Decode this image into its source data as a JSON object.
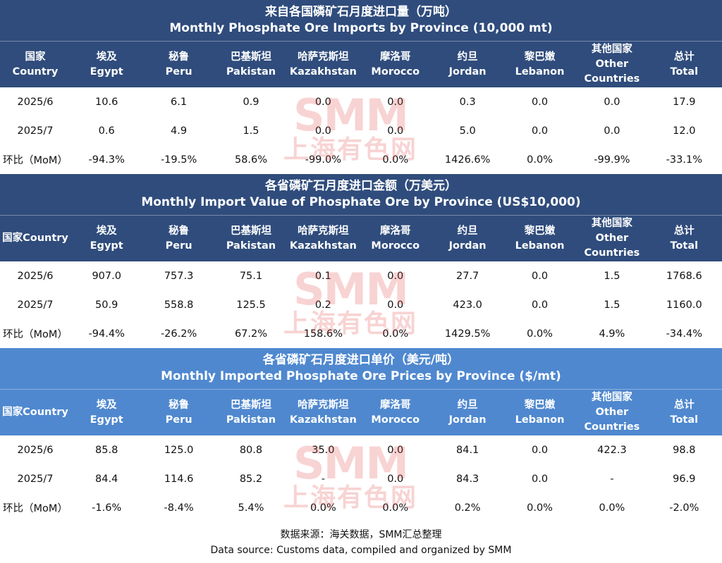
{
  "watermark": {
    "logo": "SMM",
    "name": "上海有色网"
  },
  "sections": [
    {
      "title_cn": "来自各国磷矿石月度进口量（万吨）",
      "title_en": "Monthly Phosphate Ore Imports by Province (10,000 mt)",
      "header": [
        [
          "国家",
          "Country"
        ],
        [
          "埃及",
          "Egypt"
        ],
        [
          "秘鲁",
          "Peru"
        ],
        [
          "巴基斯坦",
          "Pakistan"
        ],
        [
          "哈萨克斯坦",
          "Kazakhstan"
        ],
        [
          "摩洛哥",
          "Morocco"
        ],
        [
          "约旦",
          "Jordan"
        ],
        [
          "黎巴嫩",
          "Lebanon"
        ],
        [
          "其他国家",
          "Other Countries"
        ],
        [
          "总计",
          "Total"
        ]
      ],
      "rows": [
        [
          "2025/6",
          "10.6",
          "6.1",
          "0.9",
          "0.0",
          "0.0",
          "0.3",
          "0.0",
          "0.0",
          "17.9"
        ],
        [
          "2025/7",
          "0.6",
          "4.9",
          "1.5",
          "0.0",
          "0.0",
          "5.0",
          "0.0",
          "0.0",
          "12.0"
        ],
        [
          "环比（MoM）",
          "-94.3%",
          "-19.5%",
          "58.6%",
          "-99.0%",
          "0.0%",
          "1426.6%",
          "0.0%",
          "-99.9%",
          "-33.1%"
        ]
      ]
    },
    {
      "title_cn": "各省磷矿石月度进口金额（万美元）",
      "title_en": "Monthly Import Value of Phosphate Ore by Province (US$10,000)",
      "header": [
        [
          "国家Country"
        ],
        [
          "埃及",
          "Egypt"
        ],
        [
          "秘鲁",
          "Peru"
        ],
        [
          "巴基斯坦",
          "Pakistan"
        ],
        [
          "哈萨克斯坦",
          "Kazakhstan"
        ],
        [
          "摩洛哥",
          "Morocco"
        ],
        [
          "约旦",
          "Jordan"
        ],
        [
          "黎巴嫩",
          "Lebanon"
        ],
        [
          "其他国家",
          "Other Countries"
        ],
        [
          "总计",
          "Total"
        ]
      ],
      "rows": [
        [
          "2025/6",
          "907.0",
          "757.3",
          "75.1",
          "0.1",
          "0.0",
          "27.7",
          "0.0",
          "1.5",
          "1768.6"
        ],
        [
          "2025/7",
          "50.9",
          "558.8",
          "125.5",
          "0.2",
          "0.0",
          "423.0",
          "0.0",
          "1.5",
          "1160.0"
        ],
        [
          "环比（MoM）",
          "-94.4%",
          "-26.2%",
          "67.2%",
          "158.6%",
          "0.0%",
          "1429.5%",
          "0.0%",
          "4.9%",
          "-34.4%"
        ]
      ]
    },
    {
      "title_cn": "各省磷矿石月度进口单价（美元/吨）",
      "title_en": "Monthly Imported Phosphate Ore Prices by Province ($/mt)",
      "header": [
        [
          "国家Country"
        ],
        [
          "埃及",
          "Egypt"
        ],
        [
          "秘鲁",
          "Peru"
        ],
        [
          "巴基斯坦",
          "Pakistan"
        ],
        [
          "哈萨克斯坦",
          "Kazakhstan"
        ],
        [
          "摩洛哥",
          "Morocco"
        ],
        [
          "约旦",
          "Jordan"
        ],
        [
          "黎巴嫩",
          "Lebanon"
        ],
        [
          "其他国家",
          "Other Countries"
        ],
        [
          "总计",
          "Total"
        ]
      ],
      "rows": [
        [
          "2025/6",
          "85.8",
          "125.0",
          "80.8",
          "35.0",
          "0.0",
          "84.1",
          "0.0",
          "422.3",
          "98.8"
        ],
        [
          "2025/7",
          "84.4",
          "114.6",
          "85.2",
          "-",
          "0.0",
          "84.3",
          "0.0",
          "-",
          "96.9"
        ],
        [
          "环比（MoM）",
          "-1.6%",
          "-8.4%",
          "5.4%",
          "0.0%",
          "0.0%",
          "0.2%",
          "0.0%",
          "0.0%",
          "-2.0%"
        ]
      ]
    }
  ],
  "footer": {
    "source_cn": "数据来源：海关数据，SMM汇总整理",
    "source_en": "Data source: Customs data, compiled and organized by SMM"
  }
}
